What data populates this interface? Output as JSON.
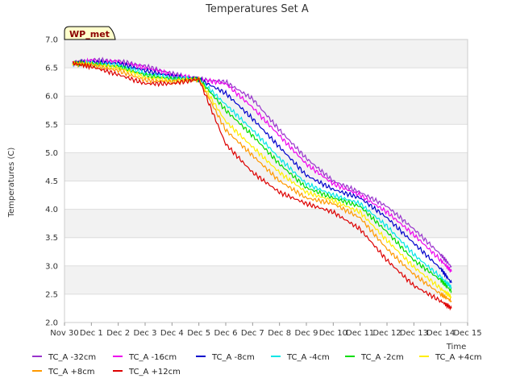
{
  "chart_data": {
    "type": "line",
    "title": "Temperatures Set A",
    "xlabel": "Time",
    "ylabel": "Temperatures (C)",
    "badge": "WP_met",
    "ylim": [
      2.0,
      7.0
    ],
    "xlim": [
      0,
      15
    ],
    "yticks": [
      2.0,
      2.5,
      3.0,
      3.5,
      4.0,
      4.5,
      5.0,
      5.5,
      6.0,
      6.5,
      7.0
    ],
    "xticks": [
      {
        "value": 0,
        "label": "Nov 30"
      },
      {
        "value": 1,
        "label": "Dec 1"
      },
      {
        "value": 2,
        "label": "Dec 2"
      },
      {
        "value": 3,
        "label": "Dec 3"
      },
      {
        "value": 4,
        "label": "Dec 4"
      },
      {
        "value": 5,
        "label": "Dec 5"
      },
      {
        "value": 6,
        "label": "Dec 6"
      },
      {
        "value": 7,
        "label": "Dec 7"
      },
      {
        "value": 8,
        "label": "Dec 8"
      },
      {
        "value": 9,
        "label": "Dec 9"
      },
      {
        "value": 10,
        "label": "Dec 10"
      },
      {
        "value": 11,
        "label": "Dec 11"
      },
      {
        "value": 12,
        "label": "Dec 12"
      },
      {
        "value": 13,
        "label": "Dec 13"
      },
      {
        "value": 14,
        "label": "Dec 14"
      },
      {
        "value": 15,
        "label": "Dec 15"
      }
    ],
    "grid": true,
    "legend_position": "bottom",
    "series": [
      {
        "name": "TC_A -32cm",
        "color": "#9933cc",
        "x": [
          0.3,
          1.0,
          2.0,
          3.0,
          4.0,
          5.0,
          6.0,
          7.0,
          8.0,
          9.0,
          10.0,
          11.0,
          12.0,
          13.0,
          14.0,
          14.4
        ],
        "y": [
          6.58,
          6.64,
          6.62,
          6.53,
          6.4,
          6.3,
          6.25,
          5.95,
          5.4,
          4.9,
          4.5,
          4.3,
          4.05,
          3.65,
          3.2,
          2.98
        ]
      },
      {
        "name": "TC_A -16cm",
        "color": "#ee00ee",
        "x": [
          0.3,
          1.0,
          2.0,
          3.0,
          4.0,
          5.0,
          6.0,
          7.0,
          8.0,
          9.0,
          10.0,
          11.0,
          12.0,
          13.0,
          14.0,
          14.4
        ],
        "y": [
          6.58,
          6.62,
          6.6,
          6.5,
          6.38,
          6.3,
          6.22,
          5.8,
          5.3,
          4.8,
          4.45,
          4.25,
          3.95,
          3.55,
          3.1,
          2.9
        ]
      },
      {
        "name": "TC_A -8cm",
        "color": "#0000cc",
        "x": [
          0.3,
          1.0,
          2.0,
          3.0,
          4.0,
          5.0,
          6.0,
          7.0,
          8.0,
          9.0,
          10.0,
          11.0,
          12.0,
          13.0,
          14.0,
          14.4
        ],
        "y": [
          6.58,
          6.6,
          6.58,
          6.45,
          6.35,
          6.3,
          6.05,
          5.6,
          5.1,
          4.6,
          4.35,
          4.2,
          3.85,
          3.4,
          2.95,
          2.7
        ]
      },
      {
        "name": "TC_A -4cm",
        "color": "#00e5e5",
        "x": [
          0.3,
          1.0,
          2.0,
          3.0,
          4.0,
          5.0,
          6.0,
          7.0,
          8.0,
          9.0,
          10.0,
          11.0,
          12.0,
          13.0,
          14.0,
          14.4
        ],
        "y": [
          6.58,
          6.58,
          6.55,
          6.4,
          6.32,
          6.3,
          5.85,
          5.4,
          4.9,
          4.45,
          4.25,
          4.1,
          3.7,
          3.2,
          2.8,
          2.62
        ]
      },
      {
        "name": "TC_A -2cm",
        "color": "#00dd00",
        "x": [
          0.3,
          1.0,
          2.0,
          3.0,
          4.0,
          5.0,
          6.0,
          7.0,
          8.0,
          9.0,
          10.0,
          11.0,
          12.0,
          13.0,
          14.0,
          14.4
        ],
        "y": [
          6.58,
          6.57,
          6.52,
          6.37,
          6.3,
          6.3,
          5.75,
          5.3,
          4.8,
          4.38,
          4.2,
          4.05,
          3.6,
          3.1,
          2.75,
          2.55
        ]
      },
      {
        "name": "TC_A +4cm",
        "color": "#ffee00",
        "x": [
          0.3,
          1.0,
          2.0,
          3.0,
          4.0,
          5.0,
          6.0,
          7.0,
          8.0,
          9.0,
          10.0,
          11.0,
          12.0,
          13.0,
          14.0,
          14.4
        ],
        "y": [
          6.58,
          6.56,
          6.5,
          6.33,
          6.27,
          6.3,
          5.55,
          5.1,
          4.65,
          4.3,
          4.15,
          3.95,
          3.45,
          2.98,
          2.6,
          2.45
        ]
      },
      {
        "name": "TC_A +8cm",
        "color": "#ff9900",
        "x": [
          0.3,
          1.0,
          2.0,
          3.0,
          4.0,
          5.0,
          6.0,
          7.0,
          8.0,
          9.0,
          10.0,
          11.0,
          12.0,
          13.0,
          14.0,
          14.4
        ],
        "y": [
          6.58,
          6.55,
          6.45,
          6.28,
          6.25,
          6.3,
          5.4,
          4.95,
          4.5,
          4.2,
          4.1,
          3.85,
          3.3,
          2.85,
          2.5,
          2.38
        ]
      },
      {
        "name": "TC_A +12cm",
        "color": "#dd0000",
        "x": [
          0.3,
          1.0,
          2.0,
          3.0,
          4.0,
          5.0,
          6.0,
          7.0,
          8.0,
          9.0,
          10.0,
          11.0,
          12.0,
          13.0,
          14.0,
          14.4
        ],
        "y": [
          6.58,
          6.52,
          6.38,
          6.22,
          6.22,
          6.3,
          5.15,
          4.65,
          4.3,
          4.1,
          3.95,
          3.65,
          3.1,
          2.65,
          2.38,
          2.25
        ]
      }
    ]
  }
}
